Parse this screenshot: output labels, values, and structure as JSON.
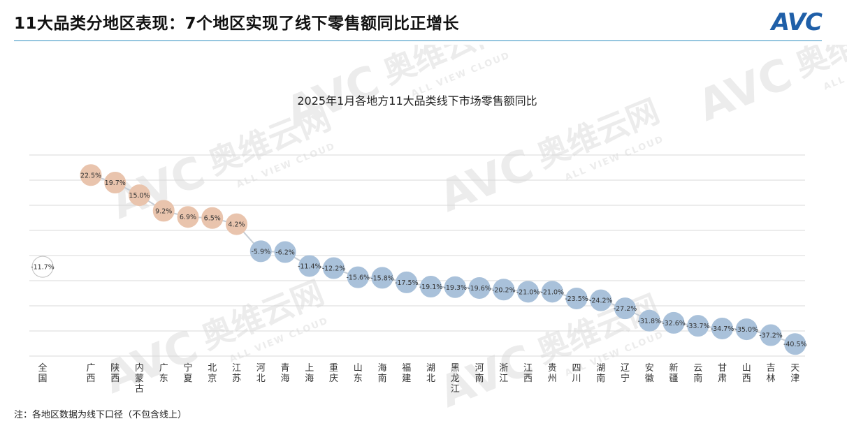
{
  "header": {
    "title": "11大品类分地区表现：7个地区实现了线下零售额同比正增长",
    "logo_text": "AVC"
  },
  "footnote": "注：各地区数据为线下口径（不包含线上）",
  "watermark": {
    "brand": "AVC",
    "cn": "奥维云网",
    "en": "ALL VIEW CLOUD"
  },
  "colors": {
    "positive": "#e9c4ad",
    "negative": "#a9c1da",
    "national": "#ffffff",
    "line": "#c7ced6",
    "grid": "#d9d9d9",
    "rule": "#2f8ec0",
    "logo": "#1f5fa8"
  },
  "chart_data": {
    "type": "line",
    "title": "2025年1月各地方11大品类线下市场零售额同比",
    "unit": "%",
    "national": {
      "name": "全国",
      "value": -11.7,
      "label": "-11.7%"
    },
    "regions": [
      "广西",
      "陕西",
      "内蒙古",
      "广东",
      "宁夏",
      "北京",
      "江苏",
      "河北",
      "青海",
      "上海",
      "重庆",
      "山东",
      "海南",
      "福建",
      "湖北",
      "黑龙江",
      "河南",
      "浙江",
      "江西",
      "贵州",
      "四川",
      "湖南",
      "辽宁",
      "安徽",
      "新疆",
      "云南",
      "甘肃",
      "山西",
      "吉林",
      "天津"
    ],
    "values": [
      22.5,
      19.7,
      15.0,
      9.2,
      6.9,
      6.5,
      4.2,
      -5.9,
      -6.2,
      -11.4,
      -12.2,
      -15.6,
      -15.8,
      -17.5,
      -19.1,
      -19.3,
      -19.6,
      -20.2,
      -21.0,
      -21.0,
      -23.5,
      -24.2,
      -27.2,
      -31.8,
      -32.6,
      -33.7,
      -34.7,
      -35.0,
      -37.2,
      -40.5
    ],
    "labels": [
      "22.5%",
      "19.7%",
      "15.0%",
      "9.2%",
      "6.9%",
      "6.5%",
      "4.2%",
      "-5.9%",
      "-6.2%",
      "-11.4%",
      "-12.2%",
      "-15.6%",
      "-15.8%",
      "-17.5%",
      "-19.1%",
      "-19.3%",
      "-19.6%",
      "-20.2%",
      "-21.0%",
      "-21.0%",
      "-23.5%",
      "-24.2%",
      "-27.2%",
      "-31.8%",
      "-32.6%",
      "-33.7%",
      "-34.7%",
      "-35.0%",
      "-37.2%",
      "-40.5%"
    ],
    "ylim": [
      -45,
      30
    ],
    "grid": true,
    "legend": "none"
  }
}
